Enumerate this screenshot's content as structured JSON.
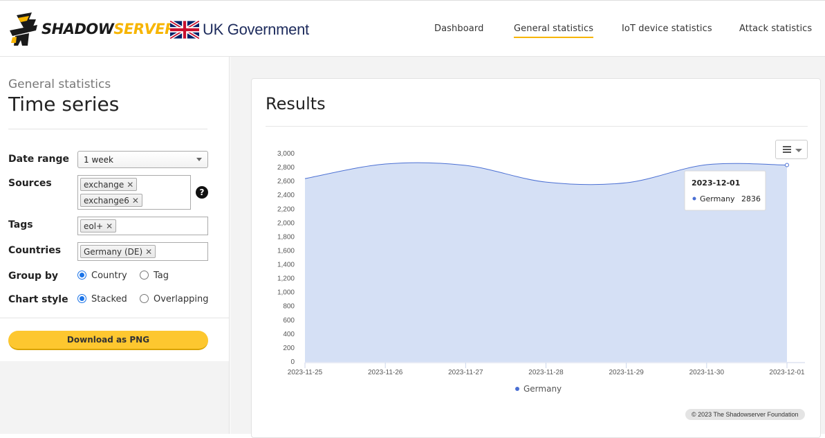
{
  "header": {
    "logo": {
      "word_left": "SHADOW",
      "word_right": "SERVER"
    },
    "partner": {
      "text": "UK Government"
    },
    "nav": [
      {
        "label": "Dashboard",
        "active": false
      },
      {
        "label": "General statistics",
        "active": true
      },
      {
        "label": "IoT device statistics",
        "active": false
      },
      {
        "label": "Attack statistics",
        "active": false
      }
    ],
    "accent_color": "#f7b500"
  },
  "sidebar": {
    "subtitle": "General statistics",
    "title": "Time series",
    "date_range": {
      "label": "Date range",
      "value": "1 week"
    },
    "sources": {
      "label": "Sources",
      "chips": [
        "exchange",
        "exchange6"
      ],
      "help_icon": "question-circle-icon"
    },
    "tags": {
      "label": "Tags",
      "chips": [
        "eol+"
      ]
    },
    "countries": {
      "label": "Countries",
      "chips": [
        "Germany (DE)"
      ]
    },
    "group_by": {
      "label": "Group by",
      "options": [
        "Country",
        "Tag"
      ],
      "selected": "Country"
    },
    "chart_style": {
      "label": "Chart style",
      "options": [
        "Stacked",
        "Overlapping"
      ],
      "selected": "Stacked"
    },
    "download_button": "Download as PNG",
    "button_color": "#fdc72f"
  },
  "main": {
    "title": "Results",
    "menu_icon": "hamburger-menu-icon",
    "credit": "© 2023 The Shadowserver Foundation",
    "tooltip": {
      "date": "2023-12-01",
      "series": "Germany",
      "value": "2836"
    }
  },
  "chart_data": {
    "type": "area",
    "title": "",
    "xlabel": "",
    "ylabel": "",
    "x": [
      "2023-11-25",
      "2023-11-26",
      "2023-11-27",
      "2023-11-28",
      "2023-11-29",
      "2023-11-30",
      "2023-12-01"
    ],
    "series": [
      {
        "name": "Germany",
        "values": [
          2640,
          2850,
          2830,
          2590,
          2580,
          2840,
          2836
        ],
        "color": "#4a6fd3",
        "fill": "#d5e0f5"
      }
    ],
    "ylim": [
      0,
      3000
    ],
    "yticks": [
      "0",
      "200",
      "400",
      "600",
      "800",
      "1,000",
      "1,200",
      "1,400",
      "1,600",
      "1,800",
      "2,000",
      "2,200",
      "2,400",
      "2,600",
      "2,800",
      "3,000"
    ],
    "grid": false,
    "legend": "bottom-center"
  }
}
